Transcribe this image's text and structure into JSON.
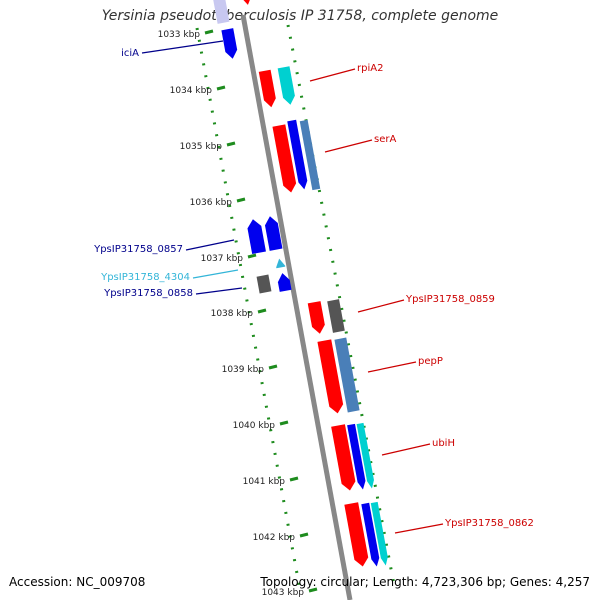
{
  "title": "Yersinia pseudotuberculosis IP 31758, complete genome",
  "footer": {
    "accession": "Accession: NC_009708",
    "summary": "Topology: circular; Length: 4,723,306 bp; Genes: 4,257"
  },
  "ticks": [
    "1033 kbp",
    "1034 kbp",
    "1035 kbp",
    "1036 kbp",
    "1037 kbp",
    "1038 kbp",
    "1039 kbp",
    "1040 kbp",
    "1041 kbp",
    "1042 kbp",
    "1043 kbp"
  ],
  "labels": [
    {
      "text": "iciA",
      "color": "#00008b"
    },
    {
      "text": "rpiA2",
      "color": "#cc0000"
    },
    {
      "text": "serA",
      "color": "#cc0000"
    },
    {
      "text": "YpsIP31758_0857",
      "color": "#00008b"
    },
    {
      "text": "YpsIP31758_4304",
      "color": "#33b5d8"
    },
    {
      "text": "YpsIP31758_0858",
      "color": "#00008b"
    },
    {
      "text": "YpsIP31758_0859",
      "color": "#cc0000"
    },
    {
      "text": "pepP",
      "color": "#cc0000"
    },
    {
      "text": "ubiH",
      "color": "#cc0000"
    },
    {
      "text": "YpsIP31758_0862",
      "color": "#cc0000"
    }
  ],
  "colors": {
    "red": "#ff0000",
    "blue": "#0000ee",
    "cyan": "#00d0d0",
    "steel": "#4a7fb8",
    "gray": "#555555",
    "lightblue": "#33b5d8",
    "lavender": "#c8c8f0",
    "backbone": "#888888",
    "dots": "#1e8c1e"
  }
}
